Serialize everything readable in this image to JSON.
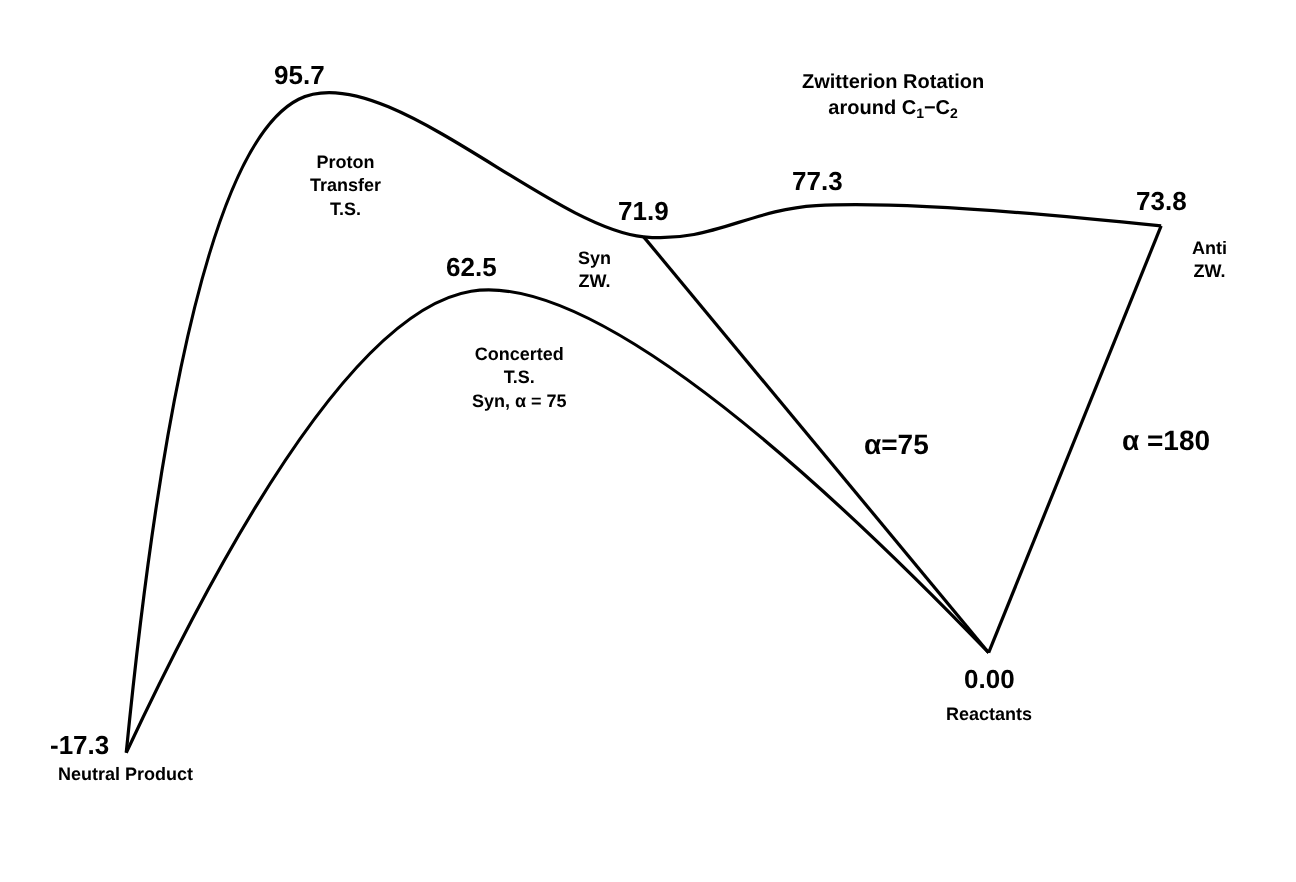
{
  "chart_data": {
    "type": "line",
    "relative": false,
    "categories": [
      "Neutral Product",
      "Proton\nTransfer\nT.S.",
      "Concerted\nT.S.\nSyn, α = 75",
      "Syn\nZW.",
      null,
      "Reactants",
      "Anti\nZW."
    ],
    "series": [
      {
        "color": "#000000",
        "values": [
          -17.3,
          95.7,
          null,
          71.9,
          77.3,
          null,
          73.8
        ],
        "value_labels": [
          "-17.3",
          "95.7",
          null,
          "71.9",
          "77.3",
          null,
          "73.8"
        ]
      },
      {
        "color": "#000000",
        "values": [
          -17.3,
          null,
          62.5,
          null,
          null,
          0.0,
          null
        ],
        "value_labels": [
          null,
          null,
          "62.5",
          null,
          null,
          "0.00",
          null
        ]
      },
      {
        "name": "α=75",
        "color": "#000000",
        "values": [
          null,
          null,
          null,
          71.9,
          null,
          0.0,
          null
        ]
      },
      {
        "name": "α =180",
        "color": "#000000",
        "values": [
          null,
          null,
          null,
          null,
          null,
          0.0,
          73.8
        ]
      }
    ],
    "annotations": [
      "Zwitterion Rotation\naround C$_{1}$−C$_{2}$"
    ],
    "tick_labels": false,
    "legend": false,
    "marker": "none",
    "line_style": "solid"
  }
}
